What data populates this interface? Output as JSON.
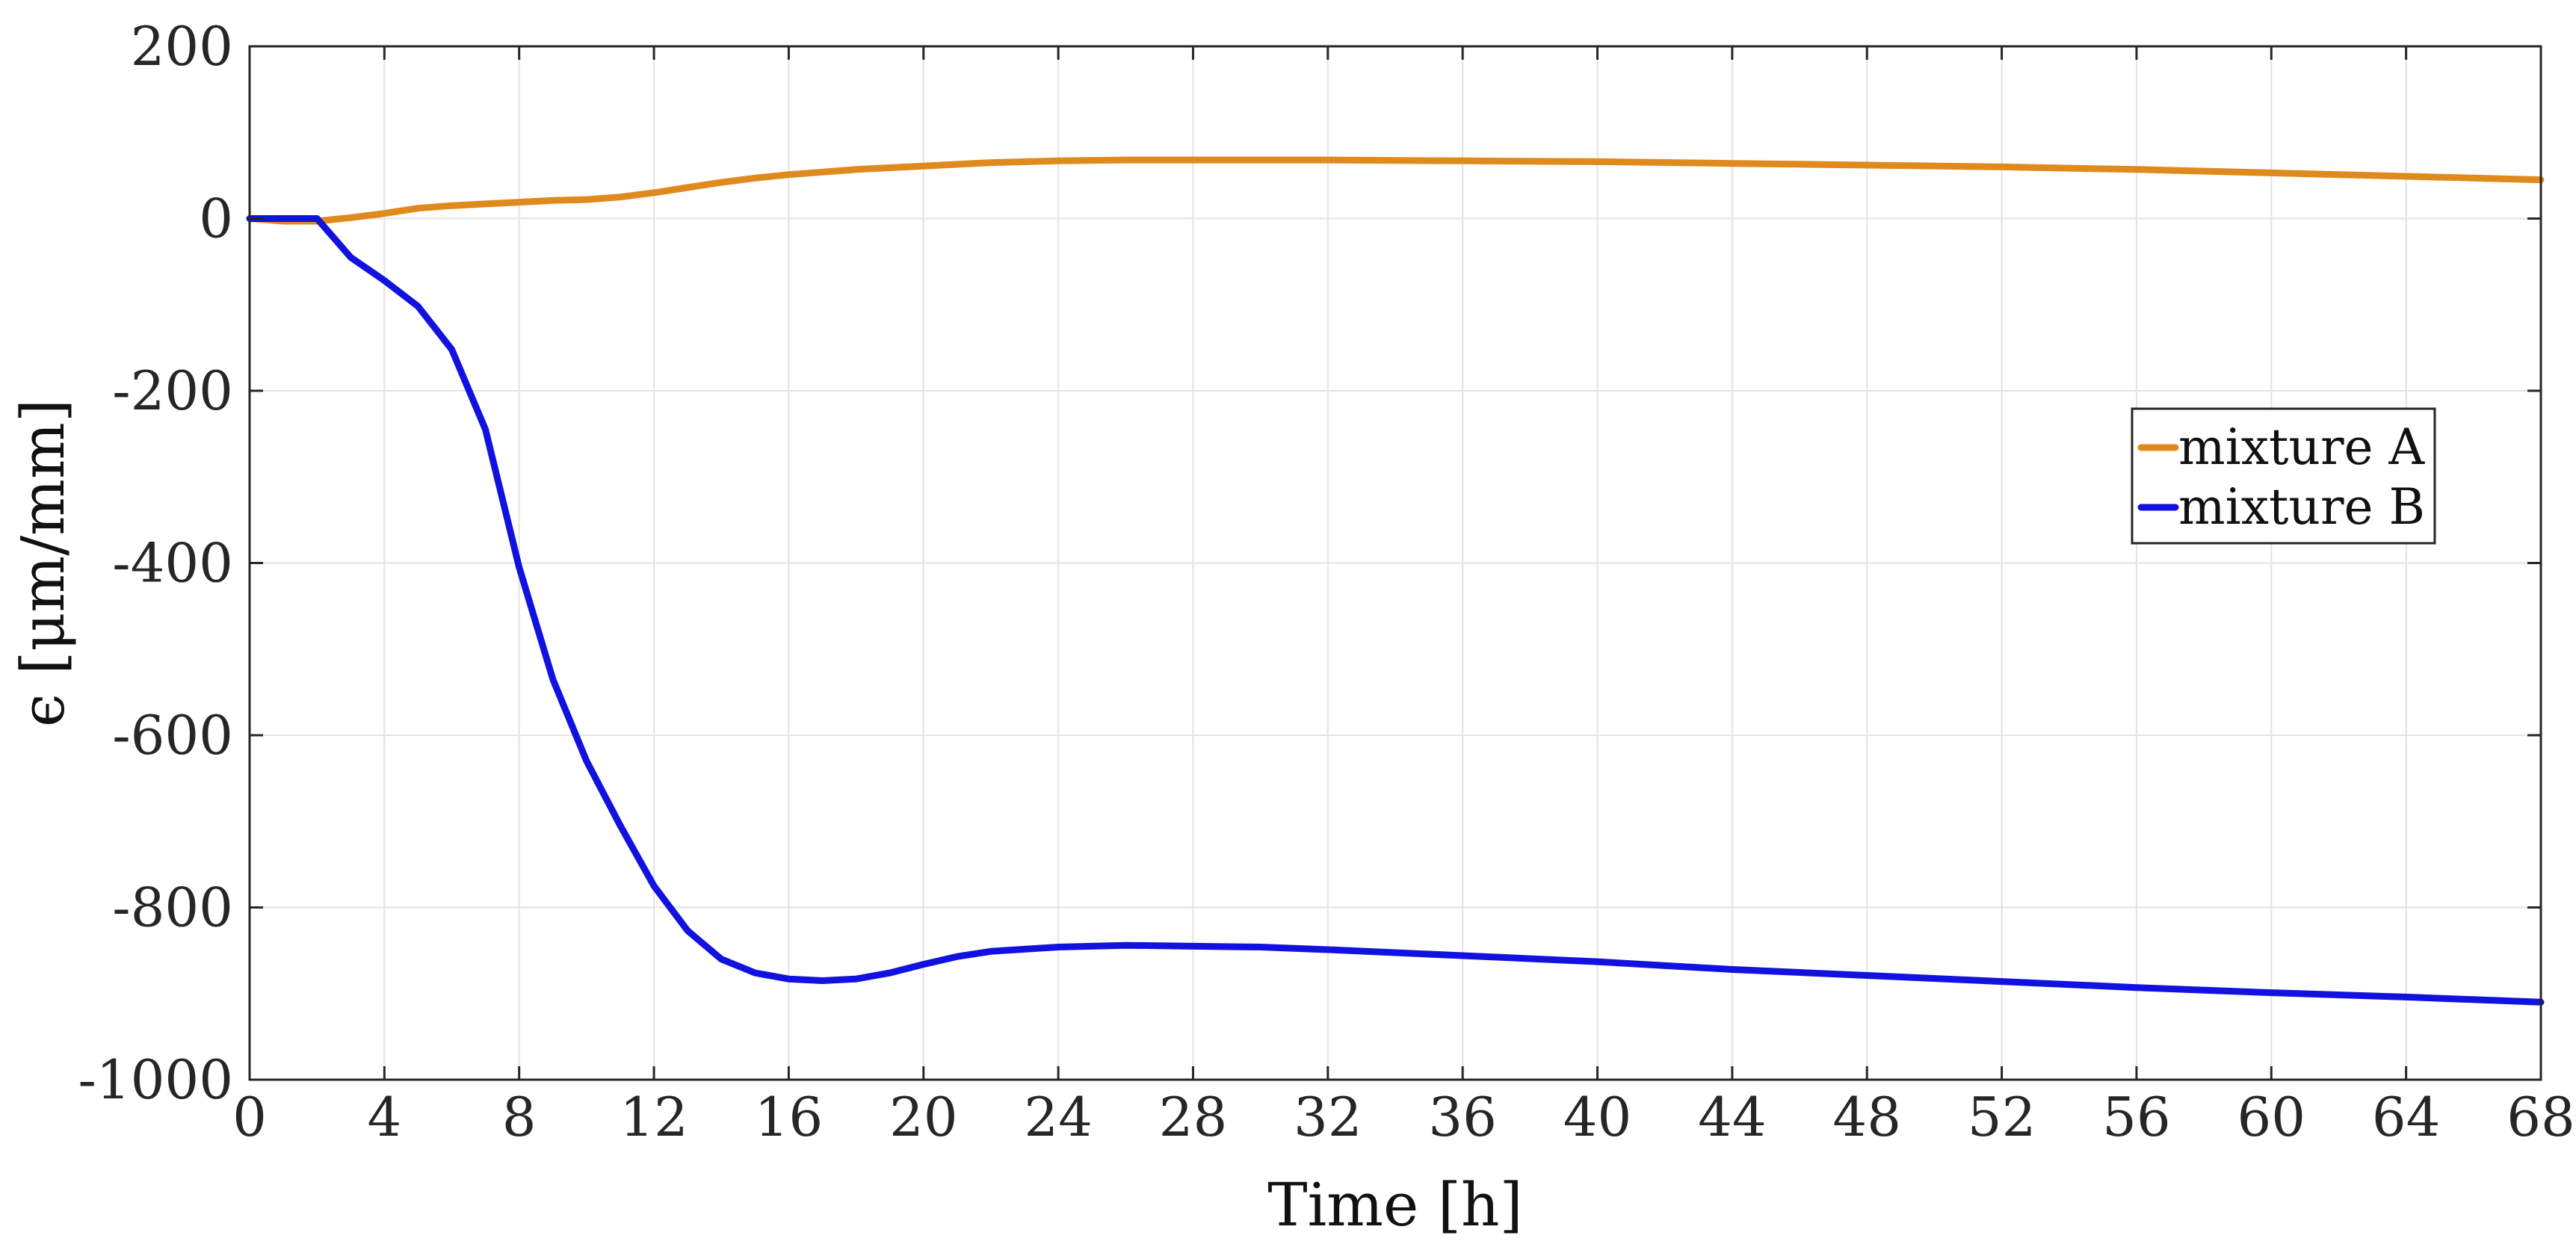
{
  "chart_data": {
    "type": "line",
    "title": "",
    "xlabel": "Time [h]",
    "ylabel": "ϵ [μm/mm]",
    "xlim": [
      0,
      68
    ],
    "ylim": [
      -1000,
      200
    ],
    "xticks": [
      0,
      4,
      8,
      12,
      16,
      20,
      24,
      28,
      32,
      36,
      40,
      44,
      48,
      52,
      56,
      60,
      64,
      68
    ],
    "yticks": [
      200,
      0,
      -200,
      -400,
      -600,
      -800,
      -1000
    ],
    "grid": true,
    "legend_position": "right",
    "series": [
      {
        "name": "mixture A",
        "color": "#e08a1e",
        "x": [
          0,
          1,
          2,
          3,
          4,
          5,
          6,
          7,
          8,
          9,
          10,
          11,
          12,
          13,
          14,
          15,
          16,
          17,
          18,
          19,
          20,
          21,
          22,
          24,
          26,
          28,
          30,
          32,
          36,
          40,
          44,
          48,
          52,
          56,
          60,
          64,
          68
        ],
        "values": [
          0,
          -3,
          -3,
          1,
          6,
          12,
          15,
          17,
          19,
          21,
          22,
          25,
          30,
          36,
          42,
          47,
          51,
          54,
          57,
          59,
          61,
          63,
          65,
          67,
          68,
          68,
          68,
          68,
          67,
          66,
          64,
          62,
          60,
          57,
          53,
          49,
          45
        ]
      },
      {
        "name": "mixture B",
        "color": "#1212e0",
        "x": [
          0,
          1,
          2,
          3,
          4,
          5,
          6,
          7,
          8,
          9,
          10,
          11,
          12,
          13,
          14,
          15,
          16,
          17,
          18,
          19,
          20,
          21,
          22,
          24,
          26,
          28,
          30,
          32,
          36,
          40,
          44,
          48,
          52,
          56,
          60,
          64,
          68
        ],
        "values": [
          0,
          0,
          0,
          -45,
          -72,
          -102,
          -152,
          -245,
          -405,
          -535,
          -630,
          -705,
          -775,
          -827,
          -860,
          -876,
          -883,
          -885,
          -883,
          -876,
          -866,
          -857,
          -851,
          -846,
          -844,
          -845,
          -846,
          -849,
          -856,
          -863,
          -872,
          -879,
          -886,
          -893,
          -899,
          -904,
          -910
        ]
      }
    ]
  }
}
